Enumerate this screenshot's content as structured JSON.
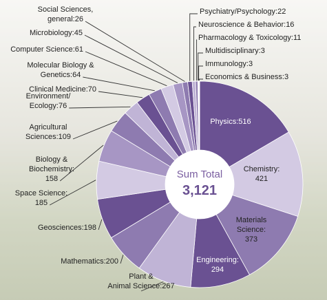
{
  "chart_data": {
    "type": "donut",
    "center_title": "Sum Total",
    "total": {
      "value": 3121,
      "label": "3,121"
    },
    "categories": [
      "Physics:",
      "Chemistry:\n",
      "Materials\nScience:\n",
      "Engineering:\n",
      "Plant &\nAnimal Science:",
      "Mathematics:",
      "Geosciences:",
      "Space Science:\n",
      "Biology &\nBiochemistry:\n",
      "Agricultural\nSciences:",
      "Environment/\nEcology:",
      "Clinical Medicine:",
      "Molecular Biology &\nGenetics:",
      "Computer Science:",
      "Microbiology:",
      "Social Sciences,\ngeneral:",
      "Psychiatry/Psychology:",
      "Neuroscience & Behavior:",
      "Pharmacology & Toxicology:",
      "Multidisciplinary:",
      "Immunology:",
      "Economics & Business:"
    ],
    "values": [
      516,
      421,
      373,
      294,
      267,
      200,
      198,
      185,
      158,
      109,
      76,
      70,
      64,
      61,
      45,
      26,
      22,
      16,
      11,
      3,
      3,
      3
    ],
    "colors": [
      "#6a5192",
      "#d3cae3",
      "#8e7bb0",
      "#6a5192",
      "#c0b4d6",
      "#8e7bb0",
      "#6a5192",
      "#d3cae3",
      "#a796c4",
      "#8e7bb0",
      "#c0b4d6",
      "#6a5192",
      "#8e7bb0",
      "#d3cae3",
      "#a796c4",
      "#8e7bb0",
      "#6a5192",
      "#c0b4d6",
      "#8e7bb0",
      "#d3cae3",
      "#a796c4",
      "#e6e0ee"
    ]
  }
}
